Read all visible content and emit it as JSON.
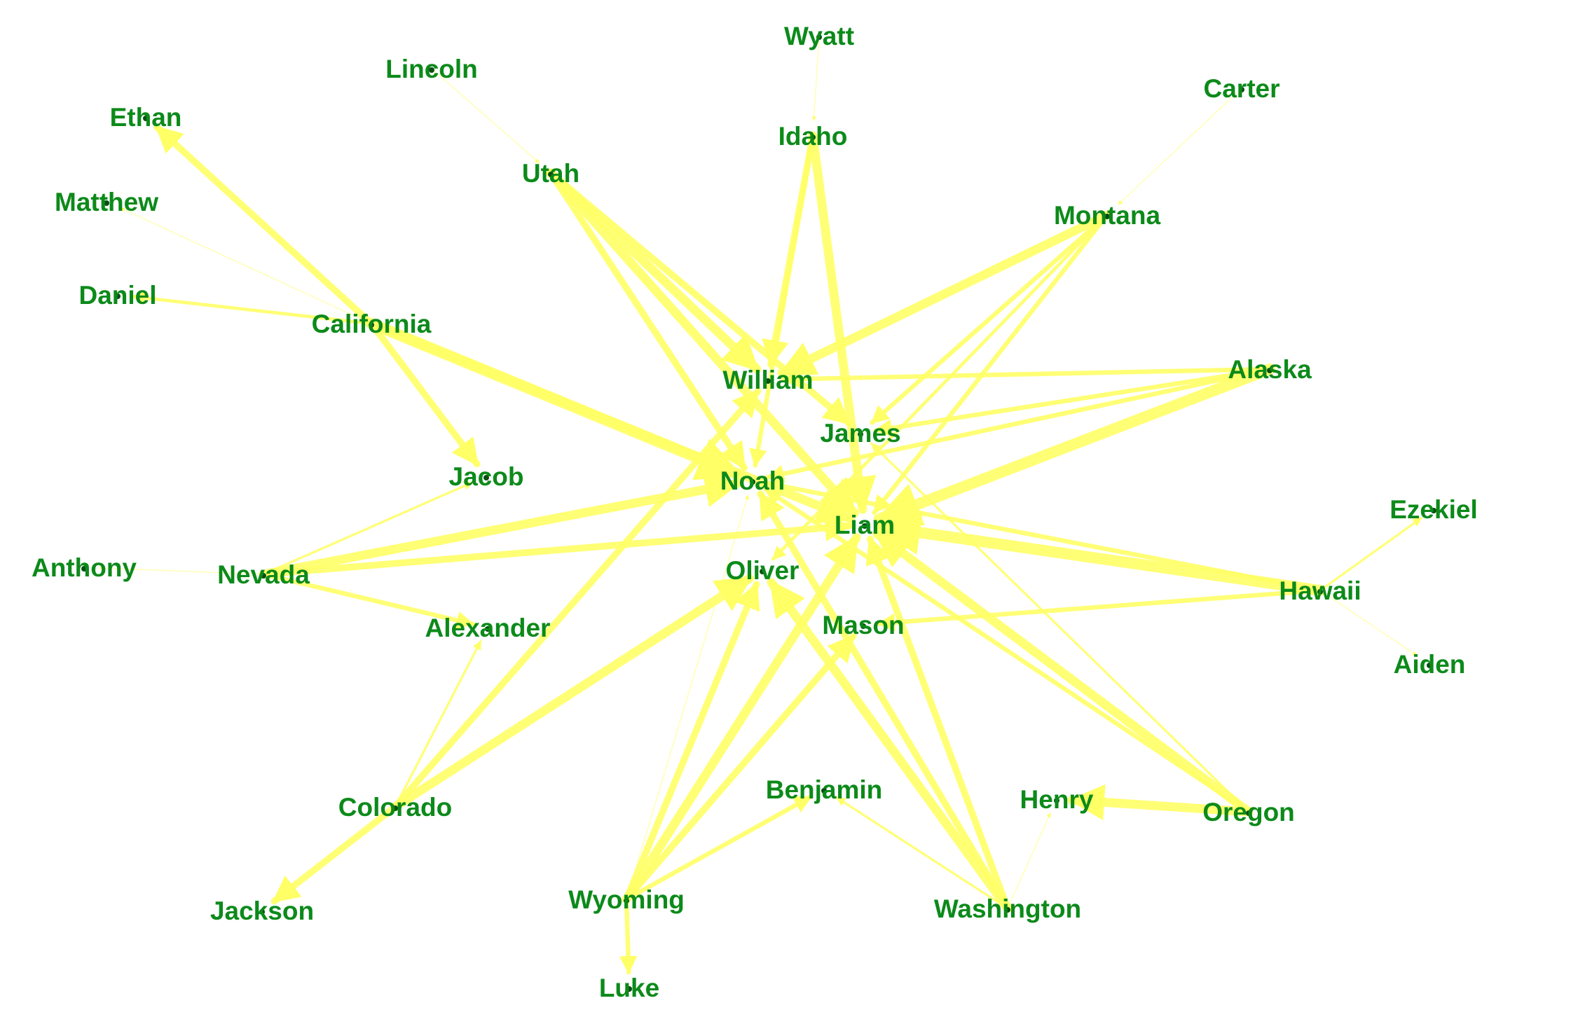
{
  "colors": {
    "edge": "#ffff66",
    "label": "#0c8a1a",
    "dot": "#0a4d12",
    "background": "#ffffff"
  },
  "nodes": [
    {
      "id": "wyatt",
      "label": "Wyatt"
    },
    {
      "id": "lincoln",
      "label": "Lincoln"
    },
    {
      "id": "ethan",
      "label": "Ethan"
    },
    {
      "id": "matthew",
      "label": "Matthew"
    },
    {
      "id": "daniel",
      "label": "Daniel"
    },
    {
      "id": "california",
      "label": "California"
    },
    {
      "id": "utah",
      "label": "Utah"
    },
    {
      "id": "idaho",
      "label": "Idaho"
    },
    {
      "id": "carter",
      "label": "Carter"
    },
    {
      "id": "montana",
      "label": "Montana"
    },
    {
      "id": "william",
      "label": "William"
    },
    {
      "id": "alaska",
      "label": "Alaska"
    },
    {
      "id": "james",
      "label": "James"
    },
    {
      "id": "jacob",
      "label": "Jacob"
    },
    {
      "id": "noah",
      "label": "Noah"
    },
    {
      "id": "liam",
      "label": "Liam"
    },
    {
      "id": "ezekiel",
      "label": "Ezekiel"
    },
    {
      "id": "anthony",
      "label": "Anthony"
    },
    {
      "id": "nevada",
      "label": "Nevada"
    },
    {
      "id": "oliver",
      "label": "Oliver"
    },
    {
      "id": "hawaii",
      "label": "Hawaii"
    },
    {
      "id": "alexander",
      "label": "Alexander"
    },
    {
      "id": "mason",
      "label": "Mason"
    },
    {
      "id": "aiden",
      "label": "Aiden"
    },
    {
      "id": "benjamin",
      "label": "Benjamin"
    },
    {
      "id": "henry",
      "label": "Henry"
    },
    {
      "id": "colorado",
      "label": "Colorado"
    },
    {
      "id": "oregon",
      "label": "Oregon"
    },
    {
      "id": "wyoming",
      "label": "Wyoming"
    },
    {
      "id": "washington",
      "label": "Washington"
    },
    {
      "id": "jackson",
      "label": "Jackson"
    },
    {
      "id": "luke",
      "label": "Luke"
    }
  ],
  "edges": [
    {
      "source": "lincoln",
      "target": "utah",
      "weight": 0.5
    },
    {
      "source": "wyatt",
      "target": "idaho",
      "weight": 0.5
    },
    {
      "source": "carter",
      "target": "montana",
      "weight": 0.5
    },
    {
      "source": "california",
      "target": "ethan",
      "weight": 3
    },
    {
      "source": "california",
      "target": "matthew",
      "weight": 0.5
    },
    {
      "source": "california",
      "target": "daniel",
      "weight": 1.5
    },
    {
      "source": "california",
      "target": "jacob",
      "weight": 3
    },
    {
      "source": "california",
      "target": "noah",
      "weight": 5
    },
    {
      "source": "california",
      "target": "liam",
      "weight": 4
    },
    {
      "source": "utah",
      "target": "william",
      "weight": 4
    },
    {
      "source": "utah",
      "target": "james",
      "weight": 3
    },
    {
      "source": "utah",
      "target": "liam",
      "weight": 4
    },
    {
      "source": "utah",
      "target": "noah",
      "weight": 3
    },
    {
      "source": "idaho",
      "target": "william",
      "weight": 3
    },
    {
      "source": "idaho",
      "target": "liam",
      "weight": 4
    },
    {
      "source": "idaho",
      "target": "noah",
      "weight": 2
    },
    {
      "source": "montana",
      "target": "william",
      "weight": 4
    },
    {
      "source": "montana",
      "target": "liam",
      "weight": 2
    },
    {
      "source": "montana",
      "target": "james",
      "weight": 2
    },
    {
      "source": "montana",
      "target": "oliver",
      "weight": 1.5
    },
    {
      "source": "alaska",
      "target": "liam",
      "weight": 5
    },
    {
      "source": "alaska",
      "target": "william",
      "weight": 2
    },
    {
      "source": "alaska",
      "target": "james",
      "weight": 2
    },
    {
      "source": "alaska",
      "target": "noah",
      "weight": 2
    },
    {
      "source": "nevada",
      "target": "anthony",
      "weight": 0.5
    },
    {
      "source": "nevada",
      "target": "jacob",
      "weight": 1
    },
    {
      "source": "nevada",
      "target": "alexander",
      "weight": 2
    },
    {
      "source": "nevada",
      "target": "noah",
      "weight": 4
    },
    {
      "source": "nevada",
      "target": "liam",
      "weight": 3
    },
    {
      "source": "hawaii",
      "target": "liam",
      "weight": 5
    },
    {
      "source": "hawaii",
      "target": "mason",
      "weight": 2
    },
    {
      "source": "hawaii",
      "target": "ezekiel",
      "weight": 1
    },
    {
      "source": "hawaii",
      "target": "aiden",
      "weight": 0.5
    },
    {
      "source": "hawaii",
      "target": "noah",
      "weight": 2
    },
    {
      "source": "colorado",
      "target": "william",
      "weight": 3
    },
    {
      "source": "colorado",
      "target": "oliver",
      "weight": 4
    },
    {
      "source": "colorado",
      "target": "jackson",
      "weight": 3
    },
    {
      "source": "colorado",
      "target": "alexander",
      "weight": 1
    },
    {
      "source": "oregon",
      "target": "liam",
      "weight": 4
    },
    {
      "source": "oregon",
      "target": "henry",
      "weight": 4
    },
    {
      "source": "oregon",
      "target": "noah",
      "weight": 2
    },
    {
      "source": "oregon",
      "target": "james",
      "weight": 1
    },
    {
      "source": "wyoming",
      "target": "liam",
      "weight": 4
    },
    {
      "source": "wyoming",
      "target": "oliver",
      "weight": 3
    },
    {
      "source": "wyoming",
      "target": "mason",
      "weight": 3
    },
    {
      "source": "wyoming",
      "target": "benjamin",
      "weight": 2
    },
    {
      "source": "wyoming",
      "target": "luke",
      "weight": 2
    },
    {
      "source": "wyoming",
      "target": "noah",
      "weight": 0.5
    },
    {
      "source": "washington",
      "target": "liam",
      "weight": 3
    },
    {
      "source": "washington",
      "target": "noah",
      "weight": 3
    },
    {
      "source": "washington",
      "target": "oliver",
      "weight": 4
    },
    {
      "source": "washington",
      "target": "benjamin",
      "weight": 1
    },
    {
      "source": "washington",
      "target": "henry",
      "weight": 0.5
    }
  ]
}
